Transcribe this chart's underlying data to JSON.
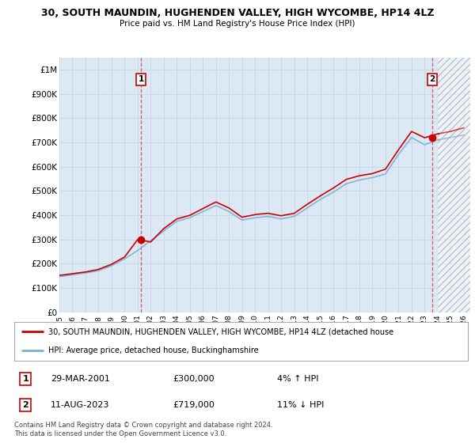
{
  "title": "30, SOUTH MAUNDIN, HUGHENDEN VALLEY, HIGH WYCOMBE, HP14 4LZ",
  "subtitle": "Price paid vs. HM Land Registry's House Price Index (HPI)",
  "footnote": "Contains HM Land Registry data © Crown copyright and database right 2024.\nThis data is licensed under the Open Government Licence v3.0.",
  "legend_label_red": "30, SOUTH MAUNDIN, HUGHENDEN VALLEY, HIGH WYCOMBE, HP14 4LZ (detached house",
  "legend_label_blue": "HPI: Average price, detached house, Buckinghamshire",
  "annotation1_label": "1",
  "annotation1_date": "29-MAR-2001",
  "annotation1_price": "£300,000",
  "annotation1_hpi": "4% ↑ HPI",
  "annotation2_label": "2",
  "annotation2_date": "11-AUG-2023",
  "annotation2_price": "£719,000",
  "annotation2_hpi": "11% ↓ HPI",
  "x_start": 1995.0,
  "x_end": 2026.5,
  "ylim": [
    0,
    1050000
  ],
  "yticks": [
    0,
    100000,
    200000,
    300000,
    400000,
    500000,
    600000,
    700000,
    800000,
    900000,
    1000000
  ],
  "ytick_labels": [
    "£0",
    "£100K",
    "£200K",
    "£300K",
    "£400K",
    "£500K",
    "£600K",
    "£700K",
    "£800K",
    "£900K",
    "£1M"
  ],
  "xtick_years": [
    1995,
    1996,
    1997,
    1998,
    1999,
    2000,
    2001,
    2002,
    2003,
    2004,
    2005,
    2006,
    2007,
    2008,
    2009,
    2010,
    2011,
    2012,
    2013,
    2014,
    2015,
    2016,
    2017,
    2018,
    2019,
    2020,
    2021,
    2022,
    2023,
    2024,
    2025,
    2026
  ],
  "bg_color": "#dde8f5",
  "grid_color": "#c8d8ea",
  "red_color": "#cc0000",
  "blue_color": "#7ab0d4",
  "hatch_start": 2024.0,
  "marker1_x": 2001.25,
  "marker1_y": 300000,
  "marker2_x": 2023.6,
  "marker2_y": 719000
}
